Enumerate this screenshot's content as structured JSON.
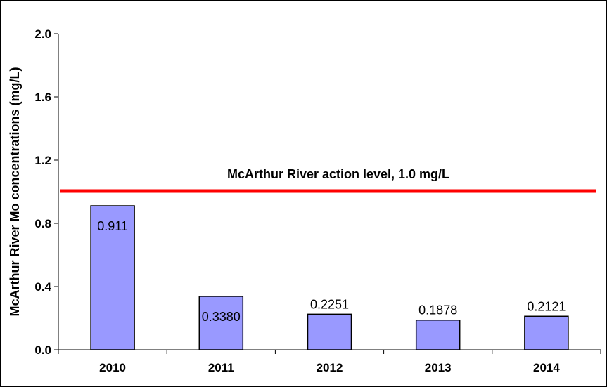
{
  "chart_data": {
    "type": "bar",
    "categories": [
      "2010",
      "2011",
      "2012",
      "2013",
      "2014"
    ],
    "values": [
      0.911,
      0.338,
      0.2251,
      0.1878,
      0.2121
    ],
    "data_labels": [
      "0.911",
      "0.3380",
      "0.2251",
      "0.1878",
      "0.2121"
    ],
    "ylabel": "McArthur River Mo concentrations (mg/L)",
    "xlabel": "",
    "ylim": [
      0,
      2.0
    ],
    "yticks": [
      0.0,
      0.4,
      0.8,
      1.2,
      1.6,
      2.0
    ],
    "ytick_labels": [
      "0.0",
      "0.4",
      "0.8",
      "1.2",
      "1.6",
      "2.0"
    ],
    "grid": false,
    "bar_color": "#9999ff",
    "bar_edge_color": "#000000",
    "reference_line": {
      "value": 1.0,
      "label": "McArthur River action level, 1.0 mg/L",
      "color": "#ff0000"
    }
  }
}
